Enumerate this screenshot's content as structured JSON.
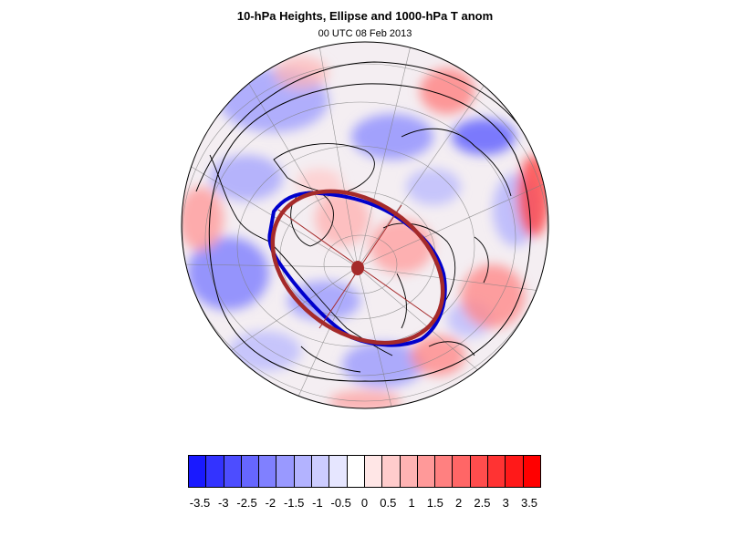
{
  "title": "10-hPa Heights, Ellipse and 1000-hPa T anom",
  "subtitle": "00 UTC 08 Feb 2013",
  "colors": {
    "negative_extreme": "#1a1aff",
    "positive_extreme": "#ff1a1a",
    "ellipse": "#a52a2a",
    "contour_highlight": "#0000cc",
    "contour": "#000000"
  },
  "colorbar": {
    "levels": [
      "-3.5",
      "-3",
      "-2.5",
      "-2",
      "-1.5",
      "-1",
      "-0.5",
      "0",
      "0.5",
      "1",
      "1.5",
      "2",
      "2.5",
      "3",
      "3.5"
    ],
    "boxes": [
      "#1919ff",
      "#3333ff",
      "#4d4dff",
      "#6666ff",
      "#8080ff",
      "#9999ff",
      "#b3b3ff",
      "#ccccff",
      "#e6e6ff",
      "#ffffff",
      "#ffe6e6",
      "#ffcccc",
      "#ffb3b3",
      "#ff9999",
      "#ff8080",
      "#ff6666",
      "#ff4d4d",
      "#ff3333",
      "#ff1919",
      "#ff0000"
    ]
  },
  "map": {
    "projection": "orthographic-polar",
    "legend_icon": "ellipse-marker"
  }
}
